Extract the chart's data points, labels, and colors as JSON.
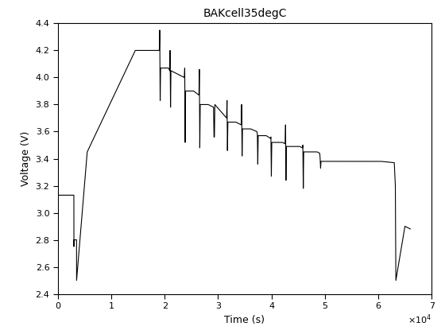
{
  "title": "BAKcell35degC",
  "xlabel": "Time (s)",
  "ylabel": "Voltage (V)",
  "xlim": [
    0,
    70000
  ],
  "ylim": [
    2.4,
    4.4
  ],
  "xtick_vals": [
    0,
    10000,
    20000,
    30000,
    40000,
    50000,
    60000,
    70000
  ],
  "xtick_labels": [
    "0",
    "1",
    "2",
    "3",
    "4",
    "5",
    "6",
    "7"
  ],
  "ytick_vals": [
    2.4,
    2.6,
    2.8,
    3.0,
    3.2,
    3.4,
    3.6,
    3.8,
    4.0,
    4.2,
    4.4
  ],
  "line_color": "#000000",
  "line_width": 0.8,
  "bg_color": "#ffffff",
  "figsize": [
    5.6,
    4.2
  ],
  "dpi": 100
}
